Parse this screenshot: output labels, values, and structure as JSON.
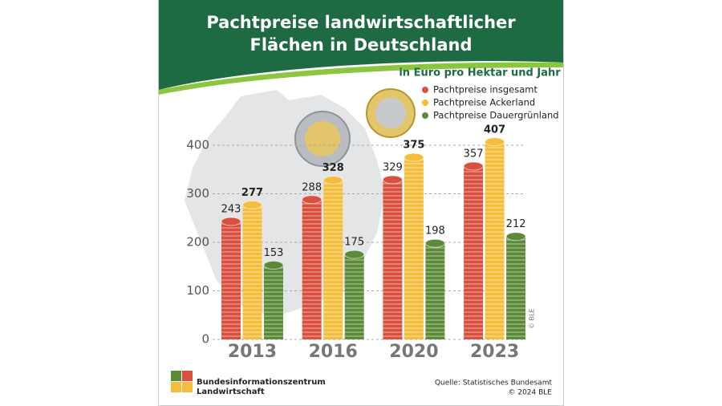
{
  "chart_data": {
    "type": "bar",
    "title": "Pachtpreise landwirtschaftlicher Flächen in Deutschland",
    "subtitle": "in Euro pro Hektar und Jahr",
    "categories": [
      "2013",
      "2016",
      "2020",
      "2023"
    ],
    "series": [
      {
        "name": "Pachtpreise insgesamt",
        "color": "#d9503f",
        "values": [
          243,
          288,
          329,
          357
        ]
      },
      {
        "name": "Pachtpreise Ackerland",
        "color": "#f4be3c",
        "values": [
          277,
          328,
          375,
          407
        ]
      },
      {
        "name": "Pachtpreise Dauergrünland",
        "color": "#5b8a38",
        "values": [
          153,
          175,
          198,
          212
        ]
      }
    ],
    "ylim": [
      0,
      400
    ],
    "yticks": [
      0,
      100,
      200,
      300,
      400
    ],
    "grid": true,
    "legend": "top-right"
  },
  "footer": {
    "organization": [
      "Bundesinformationszentrum",
      "Landwirtschaft"
    ],
    "source": "Quelle: Statistisches Bundesamt",
    "copyright": "© 2024 BLE",
    "credit": "© BLE"
  }
}
